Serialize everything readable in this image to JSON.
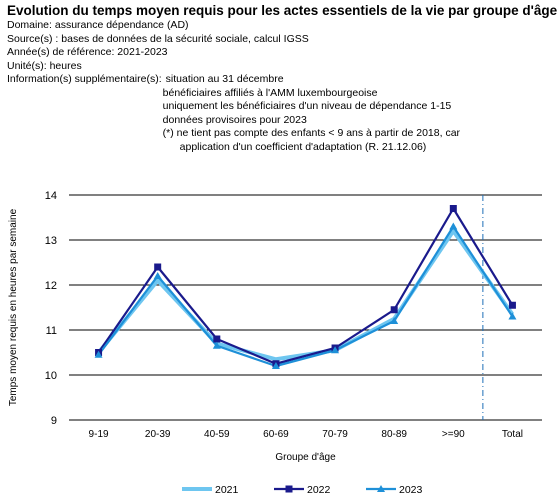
{
  "header": {
    "title": "Evolution du temps moyen requis pour les actes essentiels de la vie par groupe d'âge",
    "domain": "Domaine: assurance dépendance (AD)",
    "sources": "Source(s) : bases de données de la sécurité sociale, calcul IGSS",
    "ref_years": "Année(s) de référence: 2021-2023",
    "units": "Unité(s): heures",
    "info_label": "Information(s) supplémentaire(s):",
    "info_lines": [
      "situation au 31 décembre",
      "bénéficiaires affiliés à l'AMM luxembourgeoise",
      "uniquement les bénéficiaires d'un niveau de dépendance 1-15",
      "données provisoires pour 2023",
      "(*) ne tient pas compte des enfants < 9 ans à partir de 2018, car",
      "application d'un coefficient d'adaptation (R. 21.12.06)"
    ]
  },
  "chart_data": {
    "type": "line",
    "xlabel": "Groupe d'âge",
    "ylabel": "Temps moyen requis en heures par semaine",
    "ylim": [
      9,
      14
    ],
    "yticks": [
      9,
      10,
      11,
      12,
      13,
      14
    ],
    "grid": true,
    "legend_position": "bottom",
    "categories": [
      "9-19",
      "20-39",
      "40-59",
      "60-69",
      "70-79",
      "80-89",
      ">=90",
      "Total"
    ],
    "series": [
      {
        "name": "2021",
        "color": "#6ec6f0",
        "marker": "none",
        "values": [
          10.5,
          12.1,
          10.7,
          10.35,
          10.55,
          11.25,
          13.2,
          11.35
        ]
      },
      {
        "name": "2022",
        "color": "#1a1a8c",
        "marker": "square",
        "values": [
          10.5,
          12.4,
          10.8,
          10.25,
          10.6,
          11.45,
          13.7,
          11.55
        ]
      },
      {
        "name": "2023",
        "color": "#1e90d8",
        "marker": "triangle",
        "values": [
          10.45,
          12.2,
          10.65,
          10.2,
          10.55,
          11.2,
          13.3,
          11.3
        ]
      }
    ],
    "separator_before": "Total"
  }
}
